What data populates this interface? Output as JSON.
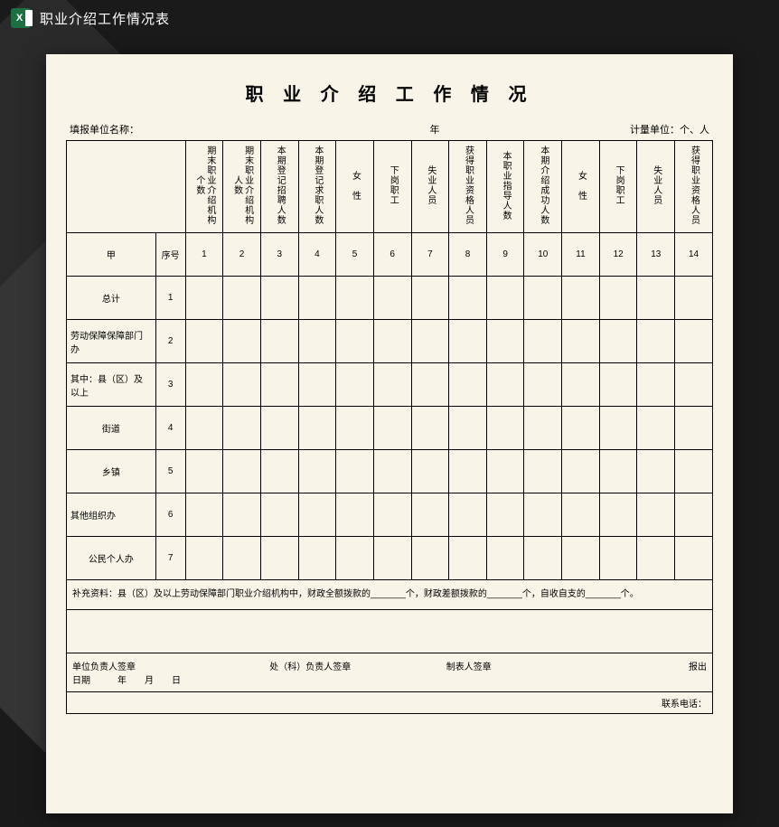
{
  "titlebar": {
    "icon_letter": "X",
    "title": "职业介绍工作情况表"
  },
  "document": {
    "title": "职 业 介 绍 工 作 情 况",
    "info": {
      "unit_label": "填报单位名称：",
      "year_label": "年",
      "measure_label": "计量单位：个、人"
    },
    "headers": {
      "c1": "期末职业介绍机构个数",
      "c2": "期末职业介绍机构人数",
      "c3": "本期登记招聘人数",
      "c4": "本期登记求职人数",
      "c5": "女　性",
      "c6": "下岗职工",
      "c7": "失业人员",
      "c8": "获得职业资格人员",
      "c9": "本职业指导人数",
      "c10": "本期介绍成功人数",
      "c11": "女　性",
      "c12": "下岗职工",
      "c13": "失业人员",
      "c14": "获得职业资格人员"
    },
    "header_row": {
      "jia": "甲",
      "seq": "序号"
    },
    "numbers": [
      "1",
      "2",
      "3",
      "4",
      "5",
      "6",
      "7",
      "8",
      "9",
      "10",
      "11",
      "12",
      "13",
      "14"
    ],
    "rows": [
      {
        "label": "总计",
        "seq": "1",
        "align": "center"
      },
      {
        "label": "劳动保障保障部门办",
        "seq": "2",
        "align": "left"
      },
      {
        "label": "其中：县（区）及以上",
        "seq": "3",
        "align": "left"
      },
      {
        "label": "街道",
        "seq": "4",
        "align": "center"
      },
      {
        "label": "乡镇",
        "seq": "5",
        "align": "center"
      },
      {
        "label": "其他组织办",
        "seq": "6",
        "align": "left"
      },
      {
        "label": "公民个人办",
        "seq": "7",
        "align": "center"
      }
    ],
    "footer_note": "补充资料：县（区）及以上劳动保障部门职业介绍机构中，财政全额拨款的_______个，财政差额拨款的_______个，自收自支的_______个。",
    "signatures": {
      "unit": "单位负责人签章",
      "dept": "处（科）负责人签章",
      "maker": "制表人签章",
      "out": "报出",
      "date": "日期　　　年　　月　　日"
    },
    "contact": "联系电话："
  },
  "colors": {
    "paper_bg": "#f8f5e8",
    "page_bg": "#1a1a1a",
    "border": "#000000",
    "excel_green": "#1d6f42"
  }
}
